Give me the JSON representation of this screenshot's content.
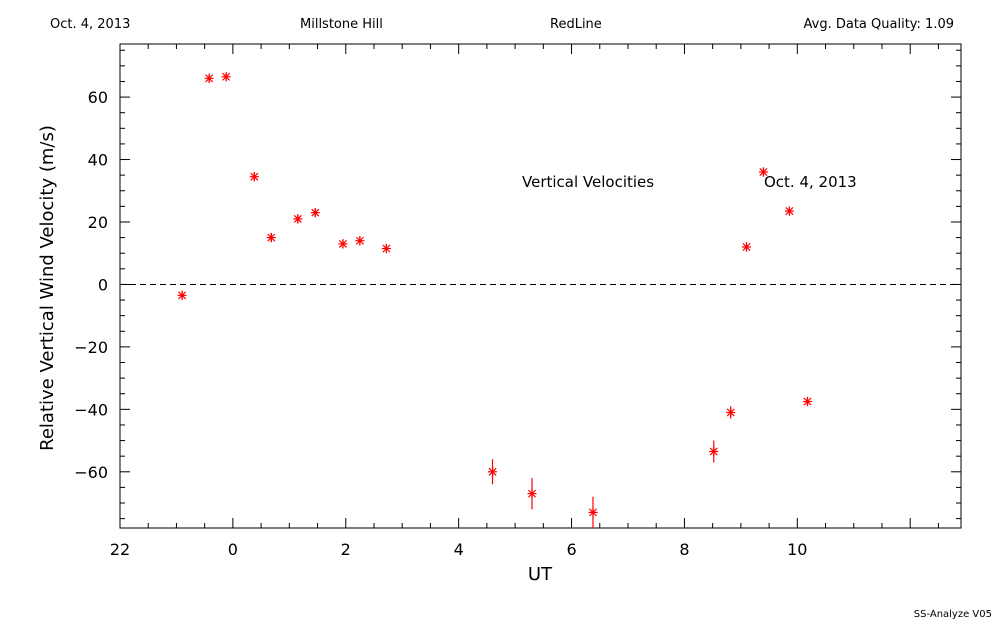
{
  "header": {
    "date": "Oct. 4, 2013",
    "site": "Millstone Hill",
    "instrument": "RedLine",
    "quality": "Avg. Data Quality: 1.09"
  },
  "footer": "SS-Analyze V05",
  "chart_data": {
    "type": "scatter",
    "xlabel": "UT",
    "ylabel": "Relative Vertical Wind Velocity (m/s)",
    "annotations": [
      "Vertical Velocities",
      "Oct. 4, 2013"
    ],
    "xlim": [
      -2.0,
      12.9
    ],
    "ylim": [
      -78,
      77
    ],
    "x_major_ticks": [
      -2,
      0,
      2,
      4,
      6,
      8,
      10
    ],
    "x_tick_labels": [
      "22",
      "0",
      "2",
      "4",
      "6",
      "8",
      "10"
    ],
    "y_major_ticks": [
      -60,
      -40,
      -20,
      0,
      20,
      40,
      60
    ],
    "y_tick_labels": [
      "−60",
      "−40",
      "−20",
      "0",
      "20",
      "40",
      "60"
    ],
    "zero_line": "dashed",
    "marker": "asterisk",
    "color": "#ff0000",
    "points": [
      {
        "x": -0.9,
        "y": -3.5,
        "err": 1.5
      },
      {
        "x": -0.42,
        "y": 66,
        "err": 1.5
      },
      {
        "x": -0.12,
        "y": 66.5,
        "err": 1.5
      },
      {
        "x": 0.38,
        "y": 34.5,
        "err": 1.5
      },
      {
        "x": 0.68,
        "y": 15,
        "err": 1.5
      },
      {
        "x": 1.15,
        "y": 21,
        "err": 1.5
      },
      {
        "x": 1.46,
        "y": 23,
        "err": 1.5
      },
      {
        "x": 1.95,
        "y": 13,
        "err": 1.5
      },
      {
        "x": 2.25,
        "y": 14,
        "err": 1.5
      },
      {
        "x": 2.72,
        "y": 11.5,
        "err": 1.5
      },
      {
        "x": 4.6,
        "y": -60,
        "err": 4
      },
      {
        "x": 5.3,
        "y": -67,
        "err": 5
      },
      {
        "x": 6.38,
        "y": -73,
        "err": 5
      },
      {
        "x": 8.52,
        "y": -53.5,
        "err": 3.5
      },
      {
        "x": 8.82,
        "y": -41,
        "err": 2
      },
      {
        "x": 9.1,
        "y": 12,
        "err": 1.5
      },
      {
        "x": 9.4,
        "y": 36,
        "err": 1.5
      },
      {
        "x": 9.86,
        "y": 23.5,
        "err": 1.5
      },
      {
        "x": 10.18,
        "y": -37.5,
        "err": 1.5
      }
    ]
  }
}
